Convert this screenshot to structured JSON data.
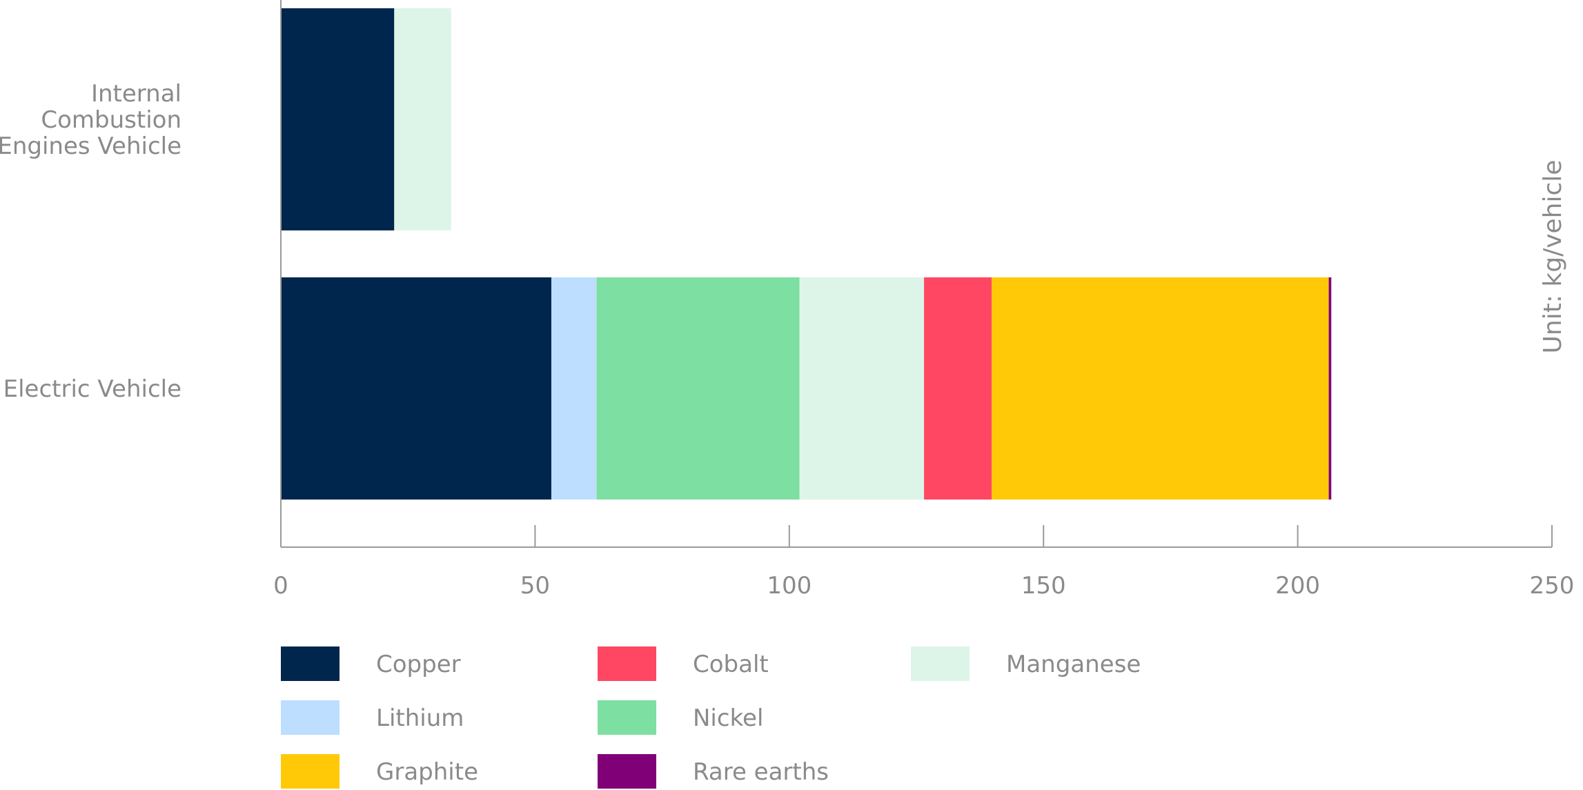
{
  "chart_data": {
    "type": "bar",
    "orientation": "horizontal",
    "stacked": true,
    "title": "",
    "xlabel": "",
    "ylabel": "",
    "unit_label": "Unit: kg/vehicle",
    "xlim": [
      0,
      250
    ],
    "xticks": [
      0,
      50,
      100,
      150,
      200,
      250
    ],
    "grid": false,
    "legend_position": "bottom",
    "categories": [
      [
        "Internal",
        "Combustion",
        "Engines Vehicle"
      ],
      [
        "Electric Vehicle"
      ]
    ],
    "series": [
      {
        "name": "Copper",
        "color": "#00264d",
        "values": [
          22.3,
          53.2
        ]
      },
      {
        "name": "Lithium",
        "color": "#bddeff",
        "values": [
          0,
          8.9
        ]
      },
      {
        "name": "Nickel",
        "color": "#7ddfa1",
        "values": [
          0,
          39.9
        ]
      },
      {
        "name": "Manganese",
        "color": "#ddf5e8",
        "values": [
          11.2,
          24.5
        ]
      },
      {
        "name": "Cobalt",
        "color": "#ff4763",
        "values": [
          0,
          13.3
        ]
      },
      {
        "name": "Graphite",
        "color": "#ffc907",
        "values": [
          0,
          66.3
        ]
      },
      {
        "name": "Rare earths",
        "color": "#800078",
        "values": [
          0,
          0.5
        ]
      }
    ],
    "legend_order": [
      [
        "Copper",
        "Cobalt",
        "Manganese"
      ],
      [
        "Lithium",
        "Nickel"
      ],
      [
        "Graphite",
        "Rare earths"
      ]
    ]
  }
}
